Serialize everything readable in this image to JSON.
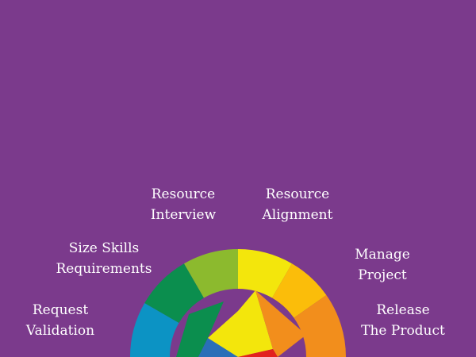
{
  "background_color": "#7b3a8c",
  "stages": [
    {
      "key": "request-validation",
      "lines": [
        "Request",
        "Validation"
      ],
      "color": "#0c93c4"
    },
    {
      "key": "size-skills",
      "lines": [
        "Size Skills",
        "Requirements"
      ],
      "color": "#0b8e4e"
    },
    {
      "key": "resource-interview",
      "lines": [
        "Resource",
        "Interview"
      ],
      "color": "#8cba2e"
    },
    {
      "key": "resource-alignment",
      "lines": [
        "Resource",
        "Alignment"
      ],
      "color": "#f3e60c"
    },
    {
      "key": "manage-project",
      "lines": [
        "Manage",
        "Project"
      ],
      "color": "#fbbd0a"
    },
    {
      "key": "release-product",
      "lines": [
        "Release",
        "The Product"
      ],
      "color": "#f28e1c"
    }
  ],
  "inner_colors": [
    "#0b8e4e",
    "#2a6fb8",
    "#f3e60c",
    "#f28e1c",
    "#e2221f"
  ]
}
